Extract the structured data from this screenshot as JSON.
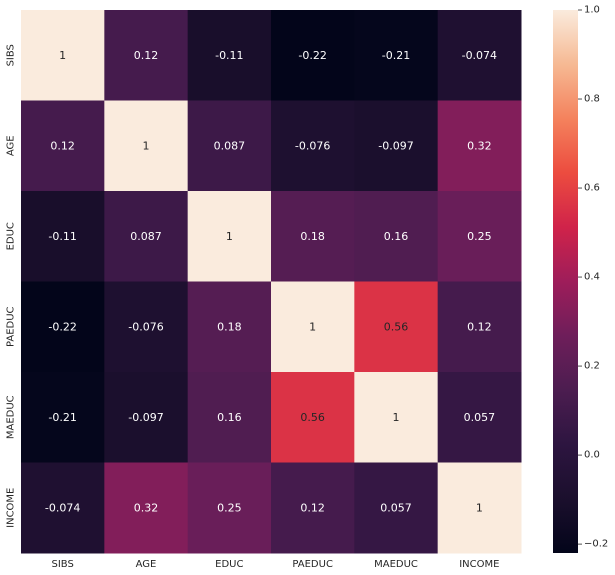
{
  "chart_data": {
    "type": "heatmap",
    "title": "",
    "xlabel": "",
    "ylabel": "",
    "x_labels": [
      "SIBS",
      "AGE",
      "EDUC",
      "PAEDUC",
      "MAEDUC",
      "INCOME"
    ],
    "y_labels": [
      "SIBS",
      "AGE",
      "EDUC",
      "PAEDUC",
      "MAEDUC",
      "INCOME"
    ],
    "values": [
      [
        1,
        0.12,
        -0.11,
        -0.22,
        -0.21,
        -0.074
      ],
      [
        0.12,
        1,
        0.087,
        -0.076,
        -0.097,
        0.32
      ],
      [
        -0.11,
        0.087,
        1,
        0.18,
        0.16,
        0.25
      ],
      [
        -0.22,
        -0.076,
        0.18,
        1,
        0.56,
        0.12
      ],
      [
        -0.21,
        -0.097,
        0.16,
        0.56,
        1,
        0.057
      ],
      [
        -0.074,
        0.32,
        0.25,
        0.12,
        0.057,
        1
      ]
    ],
    "annotations": [
      [
        "1",
        "0.12",
        "-0.11",
        "-0.22",
        "-0.21",
        "-0.074"
      ],
      [
        "0.12",
        "1",
        "0.087",
        "-0.076",
        "-0.097",
        "0.32"
      ],
      [
        "-0.11",
        "0.087",
        "1",
        "0.18",
        "0.16",
        "0.25"
      ],
      [
        "-0.22",
        "-0.076",
        "0.18",
        "1",
        "0.56",
        "0.12"
      ],
      [
        "-0.21",
        "-0.097",
        "0.16",
        "0.56",
        "1",
        "0.057"
      ],
      [
        "-0.074",
        "0.32",
        "0.25",
        "0.12",
        "0.057",
        "1"
      ]
    ],
    "colorbar": {
      "min": -0.22,
      "max": 1,
      "ticks": [
        -0.2,
        0.0,
        0.2,
        0.4,
        0.6,
        0.8,
        1.0
      ],
      "tick_labels": [
        "−0.2",
        "0.0",
        "0.2",
        "0.4",
        "0.6",
        "0.8",
        "1.0"
      ],
      "colormap": "rocket",
      "position": "right"
    }
  }
}
